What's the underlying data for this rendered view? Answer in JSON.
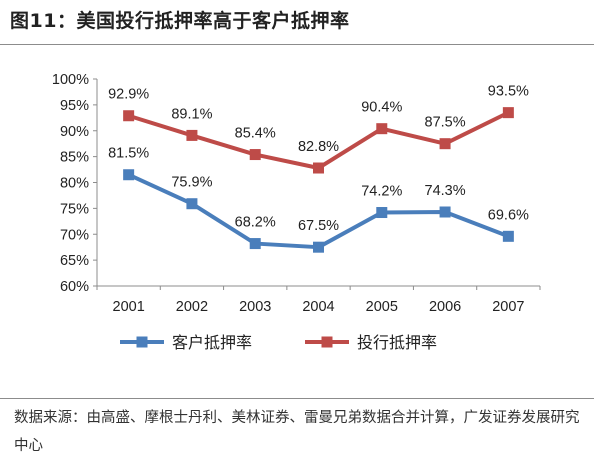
{
  "figure": {
    "title": "图11：美国投行抵押率高于客户抵押率",
    "source": "数据来源：由高盛、摩根士丹利、美林证券、雷曼兄弟数据合并计算，广发证券发展研究中心"
  },
  "chart_data": {
    "type": "line",
    "title": "图11：美国投行抵押率高于客户抵押率",
    "xlabel": "",
    "ylabel": "",
    "x": [
      "2001",
      "2002",
      "2003",
      "2004",
      "2005",
      "2006",
      "2007"
    ],
    "ylim": [
      60,
      100
    ],
    "yticks": [
      "60%",
      "65%",
      "70%",
      "75%",
      "80%",
      "85%",
      "90%",
      "95%",
      "100%"
    ],
    "grid": false,
    "legend_position": "bottom",
    "series": [
      {
        "name": "客户抵押率",
        "color": "#4a7ebb",
        "values": [
          81.5,
          75.9,
          68.2,
          67.5,
          74.2,
          74.3,
          69.6
        ],
        "labels": [
          "81.5%",
          "75.9%",
          "68.2%",
          "67.5%",
          "74.2%",
          "74.3%",
          "69.6%"
        ]
      },
      {
        "name": "投行抵押率",
        "color": "#be4b48",
        "values": [
          92.9,
          89.1,
          85.4,
          82.8,
          90.4,
          87.5,
          93.5
        ],
        "labels": [
          "92.9%",
          "89.1%",
          "85.4%",
          "82.8%",
          "90.4%",
          "87.5%",
          "93.5%"
        ]
      }
    ]
  }
}
